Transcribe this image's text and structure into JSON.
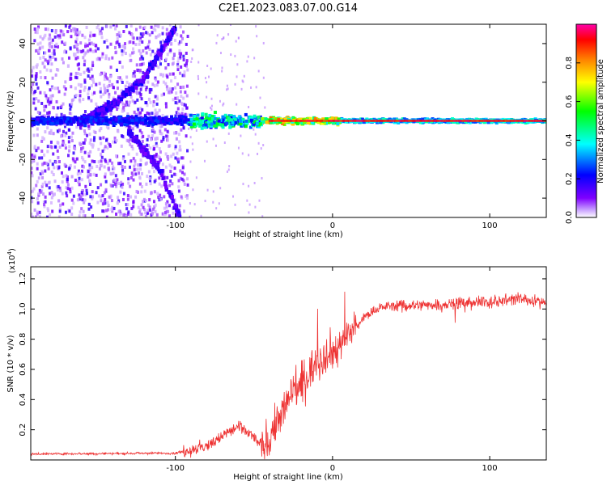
{
  "title": "C2E1.2023.083.07.00.G14",
  "chart_data": [
    {
      "type": "heatmap",
      "xlabel": "Height of straight line (km)",
      "ylabel": "Frequency (Hz)",
      "xlim": [
        -192,
        136
      ],
      "ylim": [
        -50,
        50
      ],
      "xticks": [
        -100,
        0,
        100
      ],
      "yticks": [
        -40,
        -20,
        0,
        20,
        40
      ],
      "colorbar": {
        "label": "Normalized spectral amplitude",
        "range": [
          0,
          1
        ],
        "ticks": [
          0.0,
          0.2,
          0.4,
          0.6,
          0.8
        ],
        "tick_labels": [
          "0.0",
          "0.2",
          "0.4",
          "0.6",
          "0.8"
        ],
        "colormap": [
          "#ffffff",
          "#7f00ff",
          "#0000ff",
          "#00ffff",
          "#00ff00",
          "#ffff00",
          "#ff7f00",
          "#ff0000",
          "#ff00ff"
        ]
      },
      "features": {
        "noise_region_x": [
          -192,
          -92
        ],
        "carrier_frequency_hz": 0,
        "rising_track": {
          "x": [
            -160,
            -140,
            -120,
            -100
          ],
          "y": [
            0,
            8,
            22,
            48
          ]
        },
        "falling_track": {
          "x": [
            -130,
            -110,
            -97
          ],
          "y": [
            -5,
            -25,
            -50
          ]
        }
      }
    },
    {
      "type": "line",
      "xlabel": "Height of straight line (km)",
      "ylabel": "SNR (10 * v/v)",
      "y_multiplier": "(x10",
      "y_multiplier_exp": "4",
      "y_multiplier_close": ")",
      "xlim": [
        -192,
        136
      ],
      "ylim": [
        0,
        12800
      ],
      "xticks": [
        -100,
        0,
        100
      ],
      "yticks": [
        2000,
        4000,
        6000,
        8000,
        10000,
        12000
      ],
      "ytick_labels": [
        "0.2",
        "0.4",
        "0.6",
        "0.8",
        "1.0",
        "1.2"
      ],
      "color": "#ee3333",
      "series": [
        {
          "x": [
            -192,
            -100,
            -80,
            -70,
            -60,
            -50,
            -45,
            -40,
            -35,
            -30,
            -25,
            -20,
            -15,
            -10,
            -5,
            0,
            5,
            10,
            15,
            20,
            25,
            30,
            35,
            40,
            50,
            60,
            70,
            80,
            90,
            100,
            110,
            120,
            130,
            136
          ],
          "y": [
            400,
            450,
            900,
            1600,
            2200,
            1500,
            900,
            1500,
            2500,
            3500,
            4500,
            5000,
            5800,
            6500,
            7000,
            7200,
            7600,
            8200,
            8800,
            9400,
            9800,
            10100,
            10200,
            10200,
            10200,
            10300,
            10300,
            10400,
            10400,
            10500,
            10600,
            10700,
            10500,
            10400
          ]
        }
      ]
    }
  ]
}
